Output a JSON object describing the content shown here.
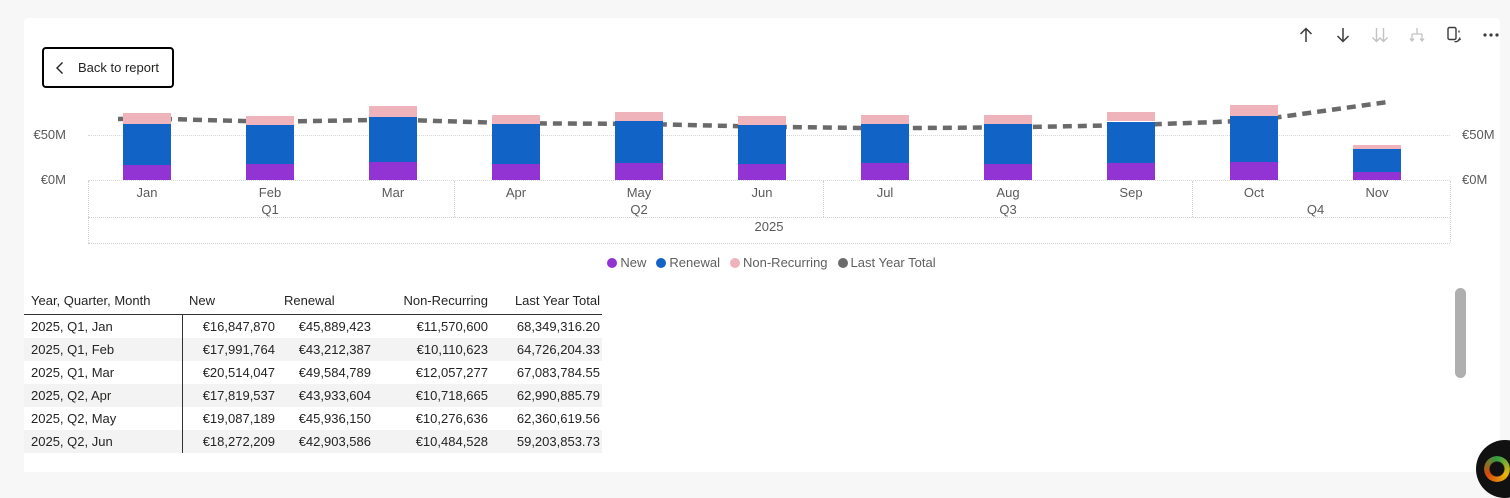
{
  "colors": {
    "page_bg": "#f7f7f7",
    "canvas_bg": "#ffffff",
    "new": "#9233d4",
    "renewal": "#1263c6",
    "non_recurring": "#efb3bc",
    "last_year_total": "#6a6a6a"
  },
  "toolbar": {
    "back_button": {
      "label": "Back to report"
    },
    "icons": [
      {
        "name": "drill-up-icon",
        "disabled": false
      },
      {
        "name": "drill-down-icon",
        "disabled": false
      },
      {
        "name": "go-to-next-level-icon",
        "disabled": true
      },
      {
        "name": "expand-all-icon",
        "disabled": true
      },
      {
        "name": "switch-visual-icon",
        "disabled": false
      },
      {
        "name": "more-options-icon",
        "disabled": false
      }
    ]
  },
  "chart_data": {
    "type": "bar",
    "stacked": true,
    "title": "",
    "x_months": [
      "Jan",
      "Feb",
      "Mar",
      "Apr",
      "May",
      "Jun",
      "Jul",
      "Aug",
      "Sep",
      "Oct",
      "Nov"
    ],
    "quarters": [
      {
        "label": "Q1",
        "month_index": 1
      },
      {
        "label": "Q2",
        "month_index": 4
      },
      {
        "label": "Q3",
        "month_index": 7
      },
      {
        "label": "Q4",
        "month_index": 9.5
      }
    ],
    "year_label": "2025",
    "y_ticks": [
      {
        "label": "€0M",
        "value": 0
      },
      {
        "label": "€50M",
        "value": 50
      }
    ],
    "ylim": [
      0,
      55
    ],
    "y_unit": "EUR millions",
    "grid": "dotted",
    "legend_position": "bottom-center",
    "series": [
      {
        "name": "New",
        "color": "#9233d4",
        "values_meur": [
          16.85,
          17.99,
          20.51,
          17.82,
          19.09,
          18.27,
          18.5,
          18.0,
          19.0,
          19.5,
          8.5
        ]
      },
      {
        "name": "Renewal",
        "color": "#1263c6",
        "values_meur": [
          45.89,
          43.21,
          49.58,
          43.93,
          45.94,
          42.9,
          43.5,
          44.0,
          46.0,
          51.5,
          25.5
        ]
      },
      {
        "name": "Non-Recurring",
        "color": "#efb3bc",
        "values_meur": [
          11.57,
          10.11,
          12.06,
          10.72,
          10.28,
          10.48,
          10.5,
          10.0,
          10.5,
          12.0,
          5.0
        ]
      }
    ],
    "line_series": {
      "name": "Last Year Total",
      "color": "#6a6a6a",
      "style": "dashed",
      "values_meur": [
        68.35,
        64.73,
        67.08,
        62.99,
        62.36,
        59.2,
        57.5,
        58.5,
        61.0,
        66.0,
        85.0
      ]
    },
    "legend": [
      {
        "label": "New",
        "color": "#9233d4"
      },
      {
        "label": "Renewal",
        "color": "#1263c6"
      },
      {
        "label": "Non-Recurring",
        "color": "#efb3bc"
      },
      {
        "label": "Last Year Total",
        "color": "#6a6a6a"
      }
    ]
  },
  "table": {
    "columns": [
      "Year, Quarter, Month",
      "New",
      "Renewal",
      "Non-Recurring",
      "Last Year Total"
    ],
    "column_aligns_header": [
      "left",
      "left",
      "left",
      "right",
      "right"
    ],
    "column_aligns_values": [
      "left",
      "right",
      "right",
      "right",
      "right"
    ],
    "rows": [
      [
        "2025, Q1, Jan",
        "€16,847,870",
        "€45,889,423",
        "€11,570,600",
        "68,349,316.20"
      ],
      [
        "2025, Q1, Feb",
        "€17,991,764",
        "€43,212,387",
        "€10,110,623",
        "64,726,204.33"
      ],
      [
        "2025, Q1, Mar",
        "€20,514,047",
        "€49,584,789",
        "€12,057,277",
        "67,083,784.55"
      ],
      [
        "2025, Q2, Apr",
        "€17,819,537",
        "€43,933,604",
        "€10,718,665",
        "62,990,885.79"
      ],
      [
        "2025, Q2, May",
        "€19,087,189",
        "€45,936,150",
        "€10,276,636",
        "62,360,619.56"
      ],
      [
        "2025, Q2, Jun",
        "€18,272,209",
        "€42,903,586",
        "€10,484,528",
        "59,203,853.73"
      ]
    ]
  }
}
